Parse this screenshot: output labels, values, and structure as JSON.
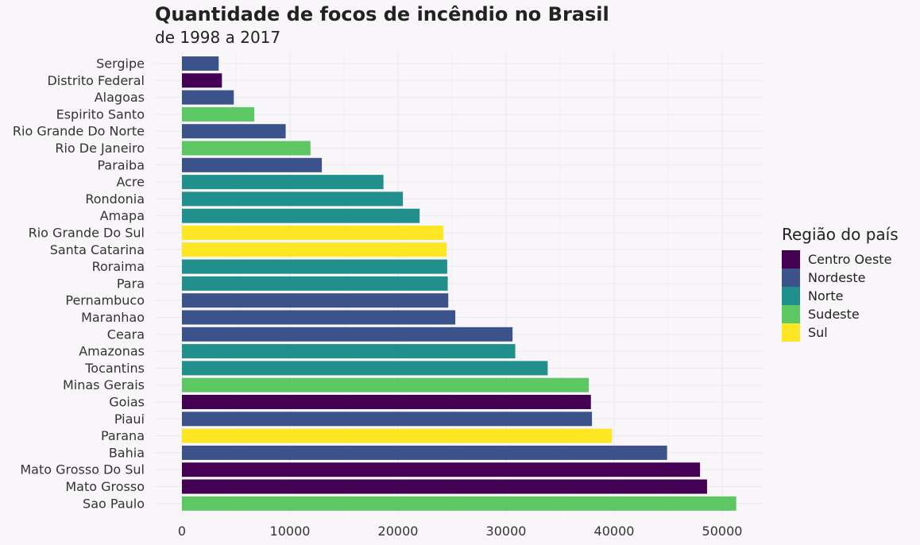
{
  "chart_data": {
    "type": "bar",
    "orientation": "horizontal",
    "title": "Quantidade de focos de incêndio no Brasil",
    "subtitle": "de 1998 a 2017",
    "xlabel": "",
    "ylabel": "",
    "xlim": [
      0,
      54000
    ],
    "x_ticks": [
      0,
      10000,
      20000,
      30000,
      40000,
      50000
    ],
    "x_tick_labels": [
      "0",
      "10000",
      "20000",
      "30000",
      "40000",
      "50000"
    ],
    "grid": true,
    "legend": {
      "title": "Região do país",
      "position": "right",
      "items": [
        {
          "name": "Centro Oeste",
          "color": "#440154"
        },
        {
          "name": "Nordeste",
          "color": "#3b528b"
        },
        {
          "name": "Norte",
          "color": "#21908c"
        },
        {
          "name": "Sudeste",
          "color": "#5dc863"
        },
        {
          "name": "Sul",
          "color": "#fde725"
        }
      ]
    },
    "bars": [
      {
        "category": "Sergipe",
        "value": 3400,
        "region": "Nordeste"
      },
      {
        "category": "Distrito Federal",
        "value": 3700,
        "region": "Centro Oeste"
      },
      {
        "category": "Alagoas",
        "value": 4800,
        "region": "Nordeste"
      },
      {
        "category": "Espirito Santo",
        "value": 6700,
        "region": "Sudeste"
      },
      {
        "category": "Rio Grande Do Norte",
        "value": 9600,
        "region": "Nordeste"
      },
      {
        "category": "Rio De Janeiro",
        "value": 11900,
        "region": "Sudeste"
      },
      {
        "category": "Paraiba",
        "value": 12950,
        "region": "Nordeste"
      },
      {
        "category": "Acre",
        "value": 18650,
        "region": "Norte"
      },
      {
        "category": "Rondonia",
        "value": 20450,
        "region": "Norte"
      },
      {
        "category": "Amapa",
        "value": 22000,
        "region": "Norte"
      },
      {
        "category": "Rio Grande Do Sul",
        "value": 24200,
        "region": "Sul"
      },
      {
        "category": "Santa Catarina",
        "value": 24500,
        "region": "Sul"
      },
      {
        "category": "Roraima",
        "value": 24550,
        "region": "Norte"
      },
      {
        "category": "Para",
        "value": 24600,
        "region": "Norte"
      },
      {
        "category": "Pernambuco",
        "value": 24650,
        "region": "Nordeste"
      },
      {
        "category": "Maranhao",
        "value": 25300,
        "region": "Nordeste"
      },
      {
        "category": "Ceara",
        "value": 30600,
        "region": "Nordeste"
      },
      {
        "category": "Amazonas",
        "value": 30850,
        "region": "Norte"
      },
      {
        "category": "Tocantins",
        "value": 33850,
        "region": "Norte"
      },
      {
        "category": "Minas Gerais",
        "value": 37650,
        "region": "Sudeste"
      },
      {
        "category": "Goias",
        "value": 37850,
        "region": "Centro Oeste"
      },
      {
        "category": "Piaui",
        "value": 37950,
        "region": "Nordeste"
      },
      {
        "category": "Parana",
        "value": 39800,
        "region": "Sul"
      },
      {
        "category": "Bahia",
        "value": 44900,
        "region": "Nordeste"
      },
      {
        "category": "Mato Grosso Do Sul",
        "value": 47950,
        "region": "Centro Oeste"
      },
      {
        "category": "Mato Grosso",
        "value": 48600,
        "region": "Centro Oeste"
      },
      {
        "category": "Sao Paulo",
        "value": 51300,
        "region": "Sudeste"
      }
    ]
  }
}
